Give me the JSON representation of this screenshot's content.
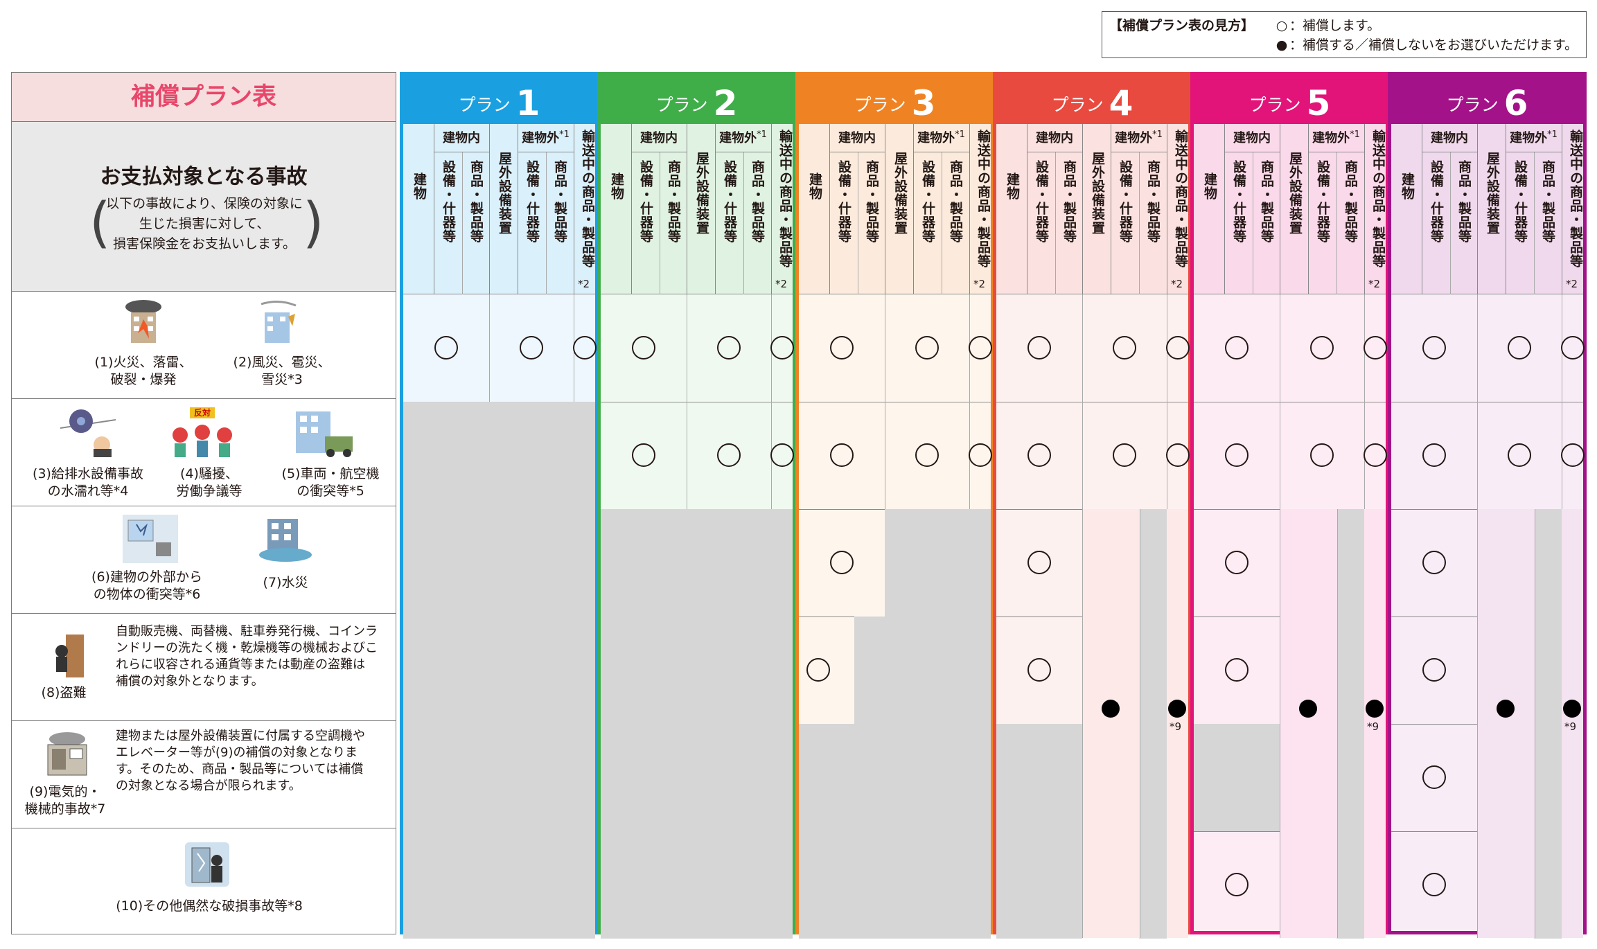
{
  "legend": {
    "title": "【補償プラン表の見方】",
    "circle_text": "：補償します。",
    "dot_text": "：補償する／補償しないをお選びいただけます。"
  },
  "table": {
    "title": "補償プラン表",
    "target_title": "お支払対象となる事故",
    "target_desc_1": "以下の事故により、保険の対象に",
    "target_desc_2": "生じた損害に対して、",
    "target_desc_3": "損害保険金をお支払いします。"
  },
  "columns": {
    "bldg_in": "建物内",
    "bldg_out": "建物外",
    "note1": "*1",
    "tatemono": "建物",
    "setsubi": "設備・什器等",
    "shohin": "商品・製品等",
    "okugai": "屋外設備装置",
    "yuso": "輸送中の商品・製品等",
    "note2": "*2"
  },
  "plans": [
    {
      "label": "プラン",
      "num": "1",
      "color": "#1aa0e0"
    },
    {
      "label": "プラン",
      "num": "2",
      "color": "#3fae49"
    },
    {
      "label": "プラン",
      "num": "3",
      "color": "#ef8323"
    },
    {
      "label": "プラン",
      "num": "4",
      "color": "#e94a3f"
    },
    {
      "label": "プラン",
      "num": "5",
      "color": "#e2147a"
    },
    {
      "label": "プラン",
      "num": "6",
      "color": "#a4128a"
    }
  ],
  "accidents": {
    "a1": "(1)火災、落雷、",
    "a1b": "破裂・爆発",
    "a2": "(2)風災、雹災、",
    "a2b": "雪災*3",
    "a3": "(3)給排水設備事故",
    "a3b": "の水濡れ等*4",
    "a4": "(4)騒擾、",
    "a4b": "労働争議等",
    "a5": "(5)車両・航空機",
    "a5b": "の衝突等*5",
    "a6": "(6)建物の外部から",
    "a6b": "の物体の衝突等*6",
    "a7": "(7)水災",
    "a8": "(8)盗難",
    "a8_note": [
      "自動販売機、両替機、駐車券発行機、コインラ",
      "ンドリーの洗たく機・乾燥機等の機械およびこ",
      "れらに収容される通貨等または動産の盗難は",
      "補償の対象外となります。"
    ],
    "a9": "(9)電気的・",
    "a9b": "機械的事故*7",
    "a9_note": [
      "建物または屋外設備装置に付属する空調機や",
      "エレベーター等が(9)の補償の対象となりま",
      "す。そのため、商品・製品等については補償",
      "の対象となる場合が限られます。"
    ],
    "a10": "(10)その他偶然な破損事故等*8",
    "sign": "反対"
  },
  "footnote9": "*9"
}
